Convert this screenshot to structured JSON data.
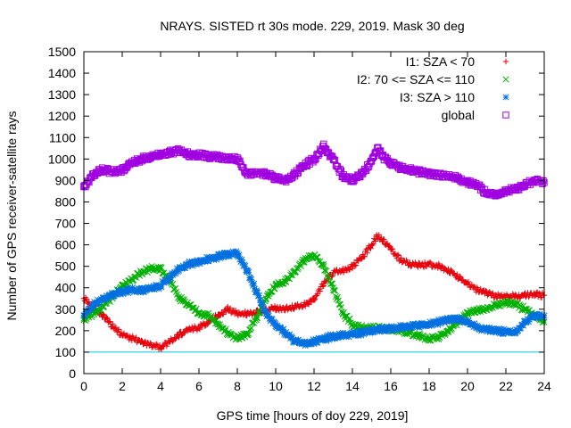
{
  "chart_data": {
    "type": "scatter",
    "title": "NRAYS. SISTED rt 30s mode. 229, 2019. Mask 30 deg",
    "xlabel": "GPS time [hours of doy 229, 2019]",
    "ylabel": "Number of GPS receiver-satellite rays",
    "xlim": [
      0,
      24
    ],
    "ylim": [
      0,
      1500
    ],
    "x_ticks": [
      "0",
      "2",
      "4",
      "6",
      "8",
      "10",
      "12",
      "14",
      "16",
      "18",
      "20",
      "22",
      "24"
    ],
    "y_ticks": [
      "0",
      "100",
      "200",
      "300",
      "400",
      "500",
      "600",
      "700",
      "800",
      "900",
      "1000",
      "1100",
      "1200",
      "1300",
      "1400",
      "1500"
    ],
    "x_tick_values": [
      0,
      2,
      4,
      6,
      8,
      10,
      12,
      14,
      16,
      18,
      20,
      22,
      24
    ],
    "y_tick_values": [
      0,
      100,
      200,
      300,
      400,
      500,
      600,
      700,
      800,
      900,
      1000,
      1100,
      1200,
      1300,
      1400,
      1500
    ],
    "legend_position": "top-right",
    "reference_line": {
      "y": 100,
      "color": "#00c8d8"
    },
    "series": [
      {
        "name": "I1: SZA < 70",
        "marker": "plus",
        "color": "#e8000b",
        "x": [
          0,
          0.5,
          1,
          1.5,
          2,
          2.5,
          3,
          3.5,
          4,
          4.5,
          5,
          5.5,
          6,
          6.5,
          7,
          7.5,
          8,
          8.5,
          9,
          9.5,
          10,
          10.5,
          11,
          11.5,
          12,
          12.5,
          13,
          13.5,
          14,
          14.5,
          15,
          15.3,
          15.6,
          16,
          16.5,
          17,
          17.5,
          18,
          18.5,
          19,
          19.5,
          20,
          20.5,
          21,
          21.5,
          22,
          22.5,
          23,
          23.5,
          24
        ],
        "values": [
          350,
          310,
          270,
          220,
          180,
          165,
          150,
          135,
          120,
          150,
          185,
          205,
          215,
          240,
          270,
          300,
          280,
          280,
          285,
          295,
          305,
          300,
          310,
          320,
          350,
          420,
          470,
          480,
          500,
          540,
          600,
          640,
          625,
          580,
          530,
          510,
          505,
          510,
          500,
          480,
          450,
          420,
          390,
          375,
          365,
          360,
          360,
          365,
          370,
          365
        ]
      },
      {
        "name": "I2: 70 <= SZA <= 110",
        "marker": "cross",
        "color": "#00b000",
        "x": [
          0,
          0.5,
          1,
          1.5,
          2,
          2.5,
          3,
          3.5,
          4,
          4.5,
          5,
          5.5,
          6,
          6.5,
          7,
          7.5,
          8,
          8.5,
          9,
          9.5,
          10,
          10.5,
          11,
          11.5,
          12,
          12.5,
          13,
          13.5,
          14,
          14.5,
          15,
          15.5,
          16,
          16.5,
          17,
          17.5,
          18,
          18.5,
          19,
          19.5,
          20,
          20.5,
          21,
          21.5,
          22,
          22.5,
          23,
          23.5,
          24
        ],
        "values": [
          250,
          280,
          310,
          360,
          410,
          440,
          470,
          490,
          490,
          430,
          350,
          320,
          280,
          270,
          230,
          190,
          165,
          180,
          260,
          350,
          410,
          430,
          480,
          530,
          550,
          500,
          400,
          280,
          230,
          215,
          215,
          210,
          205,
          200,
          190,
          175,
          160,
          170,
          200,
          240,
          280,
          300,
          300,
          320,
          330,
          325,
          300,
          270,
          240
        ]
      },
      {
        "name": "I3: SZA > 110",
        "marker": "star",
        "color": "#0070e0",
        "x": [
          0,
          0.5,
          1,
          1.5,
          2,
          2.5,
          3,
          3.5,
          4,
          4.5,
          5,
          5.5,
          6,
          6.5,
          7,
          7.5,
          8,
          8.5,
          9,
          9.5,
          10,
          10.5,
          11,
          11.5,
          12,
          12.5,
          13,
          13.5,
          14,
          14.5,
          15,
          15.5,
          16,
          16.5,
          17,
          17.5,
          18,
          18.5,
          19,
          19.5,
          20,
          20.5,
          21,
          21.5,
          22,
          22.5,
          23,
          23.5,
          24
        ],
        "values": [
          270,
          320,
          350,
          370,
          380,
          390,
          390,
          395,
          410,
          450,
          490,
          510,
          520,
          535,
          545,
          555,
          560,
          480,
          380,
          280,
          230,
          190,
          150,
          140,
          150,
          160,
          175,
          180,
          185,
          190,
          200,
          205,
          210,
          215,
          220,
          225,
          230,
          240,
          250,
          260,
          240,
          215,
          205,
          200,
          195,
          190,
          240,
          270,
          270
        ]
      },
      {
        "name": "global",
        "marker": "square",
        "color": "#a000e0",
        "x": [
          0,
          0.5,
          1,
          1.5,
          2,
          2.5,
          3,
          3.5,
          4,
          4.5,
          5,
          5.5,
          6,
          6.5,
          7,
          7.5,
          8,
          8.5,
          9,
          9.5,
          10,
          10.5,
          11,
          11.5,
          12,
          12.5,
          13,
          13.5,
          14,
          14.5,
          15,
          15.3,
          15.6,
          16,
          16.5,
          17,
          17.5,
          18,
          18.5,
          19,
          19.5,
          20,
          20.5,
          21,
          21.5,
          22,
          22.5,
          23,
          23.5,
          24
        ],
        "values": [
          870,
          930,
          950,
          940,
          950,
          980,
          1000,
          1010,
          1020,
          1030,
          1040,
          1020,
          1020,
          1010,
          1010,
          1000,
          1000,
          930,
          940,
          930,
          910,
          900,
          930,
          970,
          1000,
          1060,
          1000,
          920,
          900,
          930,
          990,
          1050,
          1010,
          980,
          960,
          950,
          940,
          930,
          930,
          920,
          910,
          890,
          880,
          840,
          830,
          850,
          860,
          880,
          900,
          890
        ]
      }
    ]
  }
}
